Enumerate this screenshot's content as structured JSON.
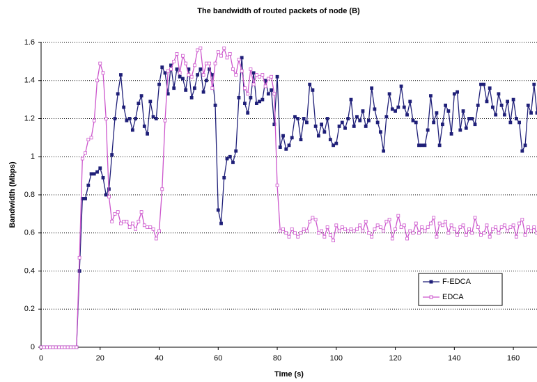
{
  "chart_data": {
    "type": "line",
    "title": "The bandwidth of routed packets of node (B)",
    "x_label": "Time (s)",
    "y_label": "Bandwidth (Mbps)",
    "x": [
      0,
      1,
      2,
      3,
      4,
      5,
      6,
      7,
      8,
      9,
      10,
      11,
      12,
      13,
      14,
      15,
      16,
      17,
      18,
      19,
      20,
      21,
      22,
      23,
      24,
      25,
      26,
      27,
      28,
      29,
      30,
      31,
      32,
      33,
      34,
      35,
      36,
      37,
      38,
      39,
      40,
      41,
      42,
      43,
      44,
      45,
      46,
      47,
      48,
      49,
      50,
      51,
      52,
      53,
      54,
      55,
      56,
      57,
      58,
      59,
      60,
      61,
      62,
      63,
      64,
      65,
      66,
      67,
      68,
      69,
      70,
      71,
      72,
      73,
      74,
      75,
      76,
      77,
      78,
      79,
      80,
      81,
      82,
      83,
      84,
      85,
      86,
      87,
      88,
      89,
      90,
      91,
      92,
      93,
      94,
      95,
      96,
      97,
      98,
      99,
      100,
      101,
      102,
      103,
      104,
      105,
      106,
      107,
      108,
      109,
      110,
      111,
      112,
      113,
      114,
      115,
      116,
      117,
      118,
      119,
      120,
      121,
      122,
      123,
      124,
      125,
      126,
      127,
      128,
      129,
      130,
      131,
      132,
      133,
      134,
      135,
      136,
      137,
      138,
      139,
      140,
      141,
      142,
      143,
      144,
      145,
      146,
      147,
      148,
      149,
      150,
      151,
      152,
      153,
      154,
      155,
      156,
      157,
      158,
      159,
      160,
      161,
      162,
      163,
      164,
      165,
      166,
      167,
      168
    ],
    "series": [
      {
        "name": "F-EDCA",
        "color": "#1f1f78",
        "marker_filled": true,
        "values": [
          0,
          0,
          0,
          0,
          0,
          0,
          0,
          0,
          0,
          0,
          0,
          0,
          0,
          0.4,
          0.78,
          0.78,
          0.85,
          0.91,
          0.91,
          0.92,
          0.94,
          0.89,
          0.8,
          0.83,
          1.01,
          1.2,
          1.33,
          1.43,
          1.26,
          1.19,
          1.2,
          1.14,
          1.2,
          1.28,
          1.32,
          1.16,
          1.12,
          1.29,
          1.21,
          1.2,
          1.38,
          1.47,
          1.44,
          1.33,
          1.48,
          1.36,
          1.46,
          1.42,
          1.41,
          1.35,
          1.46,
          1.31,
          1.36,
          1.43,
          1.46,
          1.34,
          1.4,
          1.46,
          1.43,
          1.27,
          0.72,
          0.65,
          0.89,
          0.99,
          1.0,
          0.97,
          1.03,
          1.31,
          1.52,
          1.28,
          1.23,
          1.31,
          1.44,
          1.28,
          1.29,
          1.3,
          1.4,
          1.33,
          1.35,
          1.17,
          1.42,
          1.05,
          1.11,
          1.04,
          1.06,
          1.1,
          1.21,
          1.2,
          1.09,
          1.2,
          1.18,
          1.38,
          1.35,
          1.16,
          1.11,
          1.17,
          1.13,
          1.2,
          1.09,
          1.06,
          1.07,
          1.16,
          1.18,
          1.15,
          1.2,
          1.3,
          1.16,
          1.21,
          1.19,
          1.24,
          1.16,
          1.19,
          1.36,
          1.25,
          1.18,
          1.13,
          1.03,
          1.21,
          1.33,
          1.25,
          1.24,
          1.26,
          1.37,
          1.26,
          1.22,
          1.29,
          1.19,
          1.18,
          1.06,
          1.06,
          1.06,
          1.14,
          1.32,
          1.18,
          1.23,
          1.06,
          1.17,
          1.27,
          1.24,
          1.12,
          1.33,
          1.34,
          1.14,
          1.24,
          1.15,
          1.2,
          1.2,
          1.17,
          1.27,
          1.38,
          1.38,
          1.29,
          1.36,
          1.26,
          1.22,
          1.33,
          1.27,
          1.22,
          1.29,
          1.18,
          1.3,
          1.2,
          1.18,
          1.03,
          1.06,
          1.27,
          1.23,
          1.38,
          1.23
        ]
      },
      {
        "name": "EDCA",
        "color": "#cc55cc",
        "marker_filled": false,
        "values": [
          0,
          0,
          0,
          0,
          0,
          0,
          0,
          0,
          0,
          0,
          0,
          0,
          0,
          0.47,
          0.99,
          1.02,
          1.09,
          1.1,
          1.19,
          1.4,
          1.49,
          1.44,
          1.2,
          0.79,
          0.66,
          0.7,
          0.71,
          0.65,
          0.66,
          0.66,
          0.63,
          0.65,
          0.62,
          0.66,
          0.71,
          0.64,
          0.63,
          0.63,
          0.62,
          0.57,
          0.61,
          0.83,
          1.19,
          1.45,
          1.46,
          1.5,
          1.54,
          1.44,
          1.53,
          1.49,
          1.43,
          1.42,
          1.48,
          1.56,
          1.57,
          1.43,
          1.49,
          1.49,
          1.36,
          1.49,
          1.55,
          1.53,
          1.57,
          1.52,
          1.54,
          1.46,
          1.43,
          1.51,
          1.45,
          1.36,
          1.33,
          1.46,
          1.38,
          1.43,
          1.42,
          1.43,
          1.37,
          1.41,
          1.42,
          1.33,
          0.85,
          0.61,
          0.62,
          0.6,
          0.58,
          0.62,
          0.6,
          0.58,
          0.6,
          0.62,
          0.61,
          0.66,
          0.68,
          0.67,
          0.6,
          0.61,
          0.58,
          0.63,
          0.59,
          0.56,
          0.64,
          0.61,
          0.63,
          0.62,
          0.61,
          0.62,
          0.61,
          0.62,
          0.64,
          0.61,
          0.66,
          0.6,
          0.58,
          0.62,
          0.64,
          0.63,
          0.61,
          0.66,
          0.67,
          0.57,
          0.62,
          0.69,
          0.63,
          0.64,
          0.57,
          0.61,
          0.6,
          0.65,
          0.6,
          0.63,
          0.61,
          0.63,
          0.65,
          0.68,
          0.58,
          0.65,
          0.64,
          0.66,
          0.6,
          0.64,
          0.62,
          0.59,
          0.63,
          0.64,
          0.59,
          0.62,
          0.6,
          0.68,
          0.63,
          0.59,
          0.6,
          0.64,
          0.58,
          0.62,
          0.63,
          0.6,
          0.63,
          0.64,
          0.61,
          0.63,
          0.64,
          0.58,
          0.65,
          0.67,
          0.59,
          0.63,
          0.61,
          0.63,
          0.6
        ]
      }
    ],
    "xlim": [
      0,
      168
    ],
    "ylim": [
      0,
      1.6
    ],
    "xticks": [
      0,
      20,
      40,
      60,
      80,
      100,
      120,
      140,
      160
    ],
    "yticks": [
      0,
      0.2,
      0.4,
      0.6,
      0.8,
      1,
      1.2,
      1.4,
      1.6
    ],
    "grid": true,
    "legend_position": "lower right"
  }
}
